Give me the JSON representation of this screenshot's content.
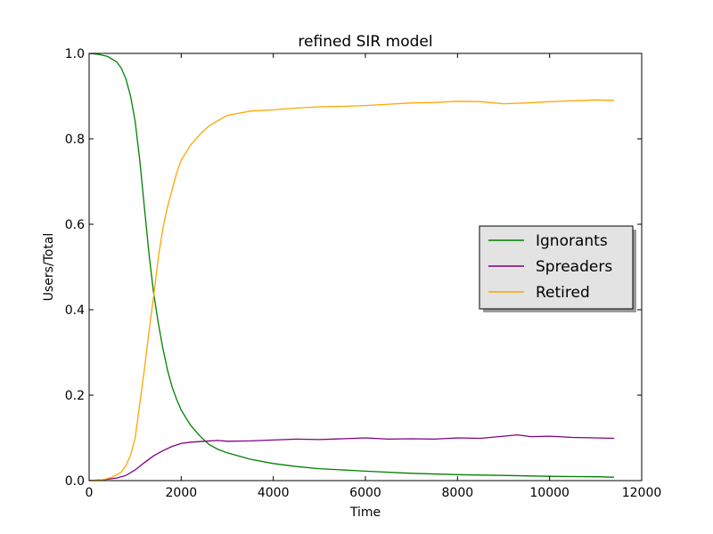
{
  "chart_data": {
    "type": "line",
    "title": "refined SIR model",
    "xlabel": "Time",
    "ylabel": "Users/Total",
    "xlim": [
      0,
      12000
    ],
    "ylim": [
      0,
      1.0
    ],
    "xticks": [
      0,
      2000,
      4000,
      6000,
      8000,
      10000,
      12000
    ],
    "yticks": [
      0.0,
      0.2,
      0.4,
      0.6,
      0.8,
      1.0
    ],
    "xtick_labels": [
      "0",
      "2000",
      "4000",
      "6000",
      "8000",
      "10000",
      "12000"
    ],
    "ytick_labels": [
      "0.0",
      "0.2",
      "0.4",
      "0.6",
      "0.8",
      "1.0"
    ],
    "grid": false,
    "legend_position": "center-right",
    "series": [
      {
        "name": "Ignorants",
        "color": "#008000",
        "points": [
          [
            0,
            1.0
          ],
          [
            200,
            0.998
          ],
          [
            400,
            0.993
          ],
          [
            600,
            0.98
          ],
          [
            700,
            0.965
          ],
          [
            800,
            0.94
          ],
          [
            900,
            0.9
          ],
          [
            1000,
            0.84
          ],
          [
            1100,
            0.75
          ],
          [
            1200,
            0.64
          ],
          [
            1300,
            0.53
          ],
          [
            1400,
            0.44
          ],
          [
            1500,
            0.37
          ],
          [
            1600,
            0.31
          ],
          [
            1700,
            0.26
          ],
          [
            1800,
            0.22
          ],
          [
            1900,
            0.19
          ],
          [
            2000,
            0.165
          ],
          [
            2200,
            0.13
          ],
          [
            2400,
            0.105
          ],
          [
            2600,
            0.085
          ],
          [
            2800,
            0.073
          ],
          [
            3000,
            0.065
          ],
          [
            3500,
            0.05
          ],
          [
            4000,
            0.04
          ],
          [
            4500,
            0.033
          ],
          [
            5000,
            0.028
          ],
          [
            6000,
            0.022
          ],
          [
            7000,
            0.017
          ],
          [
            8000,
            0.014
          ],
          [
            9000,
            0.012
          ],
          [
            10000,
            0.01
          ],
          [
            11000,
            0.009
          ],
          [
            11400,
            0.008
          ]
        ]
      },
      {
        "name": "Spreaders",
        "color": "#800080",
        "points": [
          [
            0,
            0.0
          ],
          [
            300,
            0.002
          ],
          [
            600,
            0.006
          ],
          [
            800,
            0.012
          ],
          [
            1000,
            0.025
          ],
          [
            1200,
            0.042
          ],
          [
            1400,
            0.058
          ],
          [
            1600,
            0.07
          ],
          [
            1800,
            0.08
          ],
          [
            2000,
            0.087
          ],
          [
            2200,
            0.09
          ],
          [
            2500,
            0.092
          ],
          [
            2800,
            0.094
          ],
          [
            3000,
            0.092
          ],
          [
            3500,
            0.093
          ],
          [
            4000,
            0.095
          ],
          [
            4500,
            0.097
          ],
          [
            5000,
            0.096
          ],
          [
            5500,
            0.098
          ],
          [
            6000,
            0.1
          ],
          [
            6500,
            0.097
          ],
          [
            7000,
            0.098
          ],
          [
            7500,
            0.097
          ],
          [
            8000,
            0.1
          ],
          [
            8500,
            0.099
          ],
          [
            9000,
            0.104
          ],
          [
            9300,
            0.107
          ],
          [
            9600,
            0.103
          ],
          [
            10000,
            0.104
          ],
          [
            10500,
            0.101
          ],
          [
            11000,
            0.1
          ],
          [
            11400,
            0.099
          ]
        ]
      },
      {
        "name": "Retired",
        "color": "#FFA500",
        "points": [
          [
            0,
            0.0
          ],
          [
            300,
            0.002
          ],
          [
            500,
            0.008
          ],
          [
            700,
            0.02
          ],
          [
            800,
            0.035
          ],
          [
            900,
            0.06
          ],
          [
            1000,
            0.1
          ],
          [
            1100,
            0.18
          ],
          [
            1200,
            0.26
          ],
          [
            1300,
            0.35
          ],
          [
            1400,
            0.43
          ],
          [
            1500,
            0.52
          ],
          [
            1600,
            0.59
          ],
          [
            1700,
            0.64
          ],
          [
            1800,
            0.68
          ],
          [
            1900,
            0.72
          ],
          [
            2000,
            0.75
          ],
          [
            2200,
            0.785
          ],
          [
            2400,
            0.81
          ],
          [
            2600,
            0.83
          ],
          [
            2800,
            0.843
          ],
          [
            3000,
            0.855
          ],
          [
            3500,
            0.865
          ],
          [
            4000,
            0.868
          ],
          [
            4500,
            0.872
          ],
          [
            5000,
            0.875
          ],
          [
            5500,
            0.876
          ],
          [
            6000,
            0.878
          ],
          [
            6500,
            0.881
          ],
          [
            7000,
            0.884
          ],
          [
            7500,
            0.885
          ],
          [
            8000,
            0.888
          ],
          [
            8500,
            0.887
          ],
          [
            9000,
            0.882
          ],
          [
            9500,
            0.884
          ],
          [
            10000,
            0.887
          ],
          [
            10500,
            0.889
          ],
          [
            11000,
            0.891
          ],
          [
            11400,
            0.89
          ]
        ]
      }
    ]
  }
}
